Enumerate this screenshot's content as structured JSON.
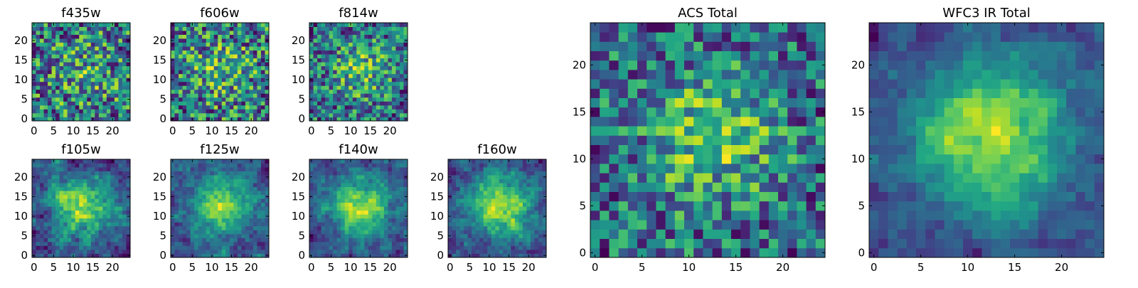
{
  "chart_data": [
    {
      "type": "heatmap",
      "title": "f435w",
      "xticks": [
        0,
        5,
        10,
        15,
        20
      ],
      "yticks": [
        0,
        5,
        10,
        15,
        20
      ],
      "xlim": [
        -0.5,
        24.5
      ],
      "ylim": [
        -0.5,
        24.5
      ],
      "grid_size": [
        25,
        25
      ],
      "colormap": "viridis",
      "pattern": "noise",
      "seed": 11,
      "noise": 0.8,
      "peak": 0.15,
      "smooth": 0
    },
    {
      "type": "heatmap",
      "title": "f606w",
      "xticks": [
        0,
        5,
        10,
        15,
        20
      ],
      "yticks": [
        0,
        5,
        10,
        15,
        20
      ],
      "xlim": [
        -0.5,
        24.5
      ],
      "ylim": [
        -0.5,
        24.5
      ],
      "grid_size": [
        25,
        25
      ],
      "colormap": "viridis",
      "pattern": "noise",
      "seed": 23,
      "noise": 0.8,
      "peak": 0.2,
      "smooth": 0
    },
    {
      "type": "heatmap",
      "title": "f814w",
      "xticks": [
        0,
        5,
        10,
        15,
        20
      ],
      "yticks": [
        0,
        5,
        10,
        15,
        20
      ],
      "xlim": [
        -0.5,
        24.5
      ],
      "ylim": [
        -0.5,
        24.5
      ],
      "grid_size": [
        25,
        25
      ],
      "colormap": "viridis",
      "pattern": "noise",
      "seed": 37,
      "noise": 0.75,
      "peak": 0.3,
      "smooth": 0
    },
    {
      "type": "heatmap",
      "title": "f105w",
      "xticks": [
        0,
        5,
        10,
        15,
        20
      ],
      "yticks": [
        0,
        5,
        10,
        15,
        20
      ],
      "xlim": [
        -0.5,
        24.5
      ],
      "ylim": [
        -0.5,
        24.5
      ],
      "grid_size": [
        25,
        25
      ],
      "colormap": "viridis",
      "pattern": "noise",
      "seed": 41,
      "noise": 0.6,
      "peak": 0.5,
      "smooth": 1
    },
    {
      "type": "heatmap",
      "title": "f125w",
      "xticks": [
        0,
        5,
        10,
        15,
        20
      ],
      "yticks": [
        0,
        5,
        10,
        15,
        20
      ],
      "xlim": [
        -0.5,
        24.5
      ],
      "ylim": [
        -0.5,
        24.5
      ],
      "grid_size": [
        25,
        25
      ],
      "colormap": "viridis",
      "pattern": "noise",
      "seed": 53,
      "noise": 0.6,
      "peak": 0.5,
      "smooth": 1
    },
    {
      "type": "heatmap",
      "title": "f140w",
      "xticks": [
        0,
        5,
        10,
        15,
        20
      ],
      "yticks": [
        0,
        5,
        10,
        15,
        20
      ],
      "xlim": [
        -0.5,
        24.5
      ],
      "ylim": [
        -0.5,
        24.5
      ],
      "grid_size": [
        25,
        25
      ],
      "colormap": "viridis",
      "pattern": "noise",
      "seed": 67,
      "noise": 0.6,
      "peak": 0.55,
      "smooth": 1
    },
    {
      "type": "heatmap",
      "title": "f160w",
      "xticks": [
        0,
        5,
        10,
        15,
        20
      ],
      "yticks": [
        0,
        5,
        10,
        15,
        20
      ],
      "xlim": [
        -0.5,
        24.5
      ],
      "ylim": [
        -0.5,
        24.5
      ],
      "grid_size": [
        25,
        25
      ],
      "colormap": "viridis",
      "pattern": "noise",
      "seed": 79,
      "noise": 0.6,
      "peak": 0.6,
      "smooth": 1
    },
    {
      "type": "heatmap",
      "title": "ACS Total",
      "xticks": [
        0,
        5,
        10,
        15,
        20
      ],
      "yticks": [
        0,
        5,
        10,
        15,
        20
      ],
      "xlim": [
        -0.5,
        24.5
      ],
      "ylim": [
        -0.5,
        24.5
      ],
      "grid_size": [
        25,
        25
      ],
      "colormap": "viridis",
      "pattern": "noise",
      "seed": 91,
      "noise": 0.7,
      "peak": 0.35,
      "smooth": 0
    },
    {
      "type": "heatmap",
      "title": "WFC3 IR Total",
      "xticks": [
        0,
        5,
        10,
        15,
        20
      ],
      "yticks": [
        0,
        5,
        10,
        15,
        20
      ],
      "xlim": [
        -0.5,
        24.5
      ],
      "ylim": [
        -0.5,
        24.5
      ],
      "grid_size": [
        25,
        25
      ],
      "colormap": "viridis",
      "pattern": "noise",
      "seed": 103,
      "noise": 0.45,
      "peak": 0.75,
      "smooth": 1
    }
  ]
}
